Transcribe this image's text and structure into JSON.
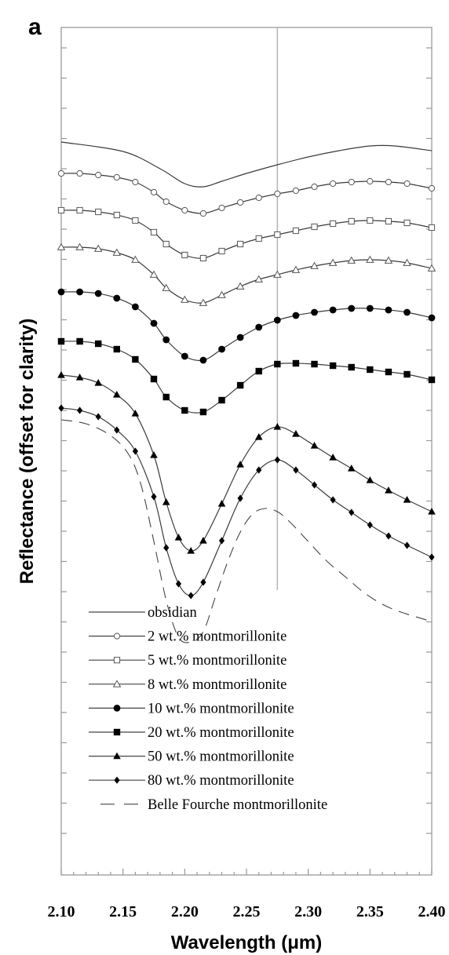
{
  "chart_data": {
    "type": "line",
    "panel_label": "a",
    "title": "",
    "xlabel": "Wavelength (μm)",
    "ylabel": "Reflectance (offset for clarity)",
    "xlim": [
      2.1,
      2.4
    ],
    "ylim": [
      0,
      1
    ],
    "x_ticks": [
      2.1,
      2.15,
      2.2,
      2.25,
      2.3,
      2.35,
      2.4
    ],
    "x_tick_labels": [
      "2.10",
      "2.15",
      "2.20",
      "2.25",
      "2.30",
      "2.35",
      "2.40"
    ],
    "y_tick_labels_shown": false,
    "y_note": "y values are relative reflectance on an offset scale (top = 1, bottom = 0); no y tick values are printed",
    "reference_line_x": 2.275,
    "legend_position": "lower-left",
    "series": [
      {
        "name": "obsidian",
        "marker": "none",
        "dash": false,
        "x": [
          2.1,
          2.15,
          2.18,
          2.2,
          2.215,
          2.23,
          2.25,
          2.275,
          2.3,
          2.325,
          2.35,
          2.37,
          2.4
        ],
        "y": [
          0.929,
          0.917,
          0.895,
          0.876,
          0.872,
          0.879,
          0.889,
          0.9,
          0.91,
          0.918,
          0.924,
          0.924,
          0.918
        ]
      },
      {
        "name": "2 wt.% montmorillonite",
        "marker": "circle-open",
        "dash": false,
        "x": [
          2.1,
          2.115,
          2.13,
          2.145,
          2.16,
          2.175,
          2.185,
          2.2,
          2.215,
          2.23,
          2.245,
          2.26,
          2.275,
          2.29,
          2.305,
          2.32,
          2.335,
          2.35,
          2.365,
          2.38,
          2.4
        ],
        "y": [
          0.889,
          0.889,
          0.887,
          0.884,
          0.878,
          0.865,
          0.853,
          0.842,
          0.838,
          0.845,
          0.852,
          0.858,
          0.863,
          0.867,
          0.872,
          0.876,
          0.878,
          0.879,
          0.878,
          0.876,
          0.87
        ]
      },
      {
        "name": "5 wt.% montmorillonite",
        "marker": "square-open",
        "dash": false,
        "x": [
          2.1,
          2.115,
          2.13,
          2.145,
          2.16,
          2.175,
          2.185,
          2.2,
          2.215,
          2.23,
          2.245,
          2.26,
          2.275,
          2.29,
          2.305,
          2.32,
          2.335,
          2.35,
          2.365,
          2.38,
          2.4
        ],
        "y": [
          0.842,
          0.842,
          0.84,
          0.836,
          0.829,
          0.814,
          0.799,
          0.785,
          0.781,
          0.79,
          0.799,
          0.806,
          0.811,
          0.816,
          0.821,
          0.825,
          0.828,
          0.829,
          0.828,
          0.826,
          0.82
        ]
      },
      {
        "name": "8 wt.% montmorillonite",
        "marker": "triangle-open",
        "dash": false,
        "x": [
          2.1,
          2.115,
          2.13,
          2.145,
          2.16,
          2.175,
          2.185,
          2.2,
          2.215,
          2.23,
          2.245,
          2.26,
          2.275,
          2.29,
          2.305,
          2.32,
          2.335,
          2.35,
          2.365,
          2.38,
          2.4
        ],
        "y": [
          0.795,
          0.795,
          0.793,
          0.788,
          0.779,
          0.76,
          0.743,
          0.728,
          0.724,
          0.734,
          0.745,
          0.754,
          0.76,
          0.766,
          0.771,
          0.775,
          0.778,
          0.779,
          0.778,
          0.775,
          0.768
        ]
      },
      {
        "name": "10 wt.% montmorillonite",
        "marker": "circle-filled",
        "dash": false,
        "x": [
          2.1,
          2.115,
          2.13,
          2.145,
          2.16,
          2.175,
          2.185,
          2.2,
          2.215,
          2.23,
          2.245,
          2.26,
          2.275,
          2.29,
          2.305,
          2.32,
          2.335,
          2.35,
          2.365,
          2.38,
          2.4
        ],
        "y": [
          0.738,
          0.738,
          0.736,
          0.73,
          0.719,
          0.698,
          0.677,
          0.656,
          0.651,
          0.665,
          0.68,
          0.693,
          0.702,
          0.708,
          0.712,
          0.715,
          0.717,
          0.717,
          0.715,
          0.712,
          0.705
        ]
      },
      {
        "name": "20 wt.% montmorillonite",
        "marker": "square-filled",
        "dash": false,
        "x": [
          2.1,
          2.115,
          2.13,
          2.145,
          2.16,
          2.175,
          2.185,
          2.2,
          2.215,
          2.23,
          2.245,
          2.26,
          2.275,
          2.29,
          2.305,
          2.32,
          2.335,
          2.35,
          2.365,
          2.38,
          2.4
        ],
        "y": [
          0.675,
          0.675,
          0.672,
          0.665,
          0.652,
          0.627,
          0.604,
          0.587,
          0.585,
          0.6,
          0.619,
          0.637,
          0.646,
          0.647,
          0.646,
          0.644,
          0.642,
          0.639,
          0.636,
          0.633,
          0.626
        ]
      },
      {
        "name": "50 wt.% montmorillonite",
        "marker": "triangle-filled",
        "dash": false,
        "x": [
          2.1,
          2.115,
          2.13,
          2.145,
          2.16,
          2.175,
          2.185,
          2.195,
          2.205,
          2.215,
          2.23,
          2.245,
          2.26,
          2.275,
          2.29,
          2.305,
          2.32,
          2.335,
          2.35,
          2.365,
          2.38,
          2.4
        ],
        "y": [
          0.632,
          0.629,
          0.622,
          0.607,
          0.583,
          0.53,
          0.47,
          0.425,
          0.408,
          0.421,
          0.468,
          0.518,
          0.553,
          0.566,
          0.557,
          0.542,
          0.527,
          0.513,
          0.498,
          0.485,
          0.473,
          0.458
        ]
      },
      {
        "name": "80 wt.% montmorillonite",
        "marker": "diamond-filled",
        "dash": false,
        "x": [
          2.1,
          2.115,
          2.13,
          2.145,
          2.16,
          2.175,
          2.185,
          2.195,
          2.205,
          2.215,
          2.23,
          2.245,
          2.26,
          2.275,
          2.29,
          2.305,
          2.32,
          2.335,
          2.35,
          2.365,
          2.38,
          2.4
        ],
        "y": [
          0.59,
          0.587,
          0.579,
          0.562,
          0.535,
          0.477,
          0.412,
          0.366,
          0.351,
          0.368,
          0.421,
          0.475,
          0.511,
          0.524,
          0.511,
          0.492,
          0.473,
          0.457,
          0.441,
          0.427,
          0.415,
          0.4
        ]
      },
      {
        "name": "Belle Fourche montmorillonite",
        "marker": "none",
        "dash": true,
        "x": [
          2.1,
          2.12,
          2.14,
          2.155,
          2.165,
          2.175,
          2.185,
          2.195,
          2.205,
          2.215,
          2.225,
          2.235,
          2.245,
          2.255,
          2.265,
          2.275,
          2.285,
          2.3,
          2.315,
          2.33,
          2.345,
          2.36,
          2.375,
          2.4
        ],
        "y": [
          0.575,
          0.57,
          0.555,
          0.53,
          0.49,
          0.42,
          0.345,
          0.298,
          0.292,
          0.305,
          0.35,
          0.395,
          0.432,
          0.455,
          0.462,
          0.458,
          0.445,
          0.42,
          0.395,
          0.375,
          0.355,
          0.34,
          0.33,
          0.318
        ]
      }
    ]
  }
}
